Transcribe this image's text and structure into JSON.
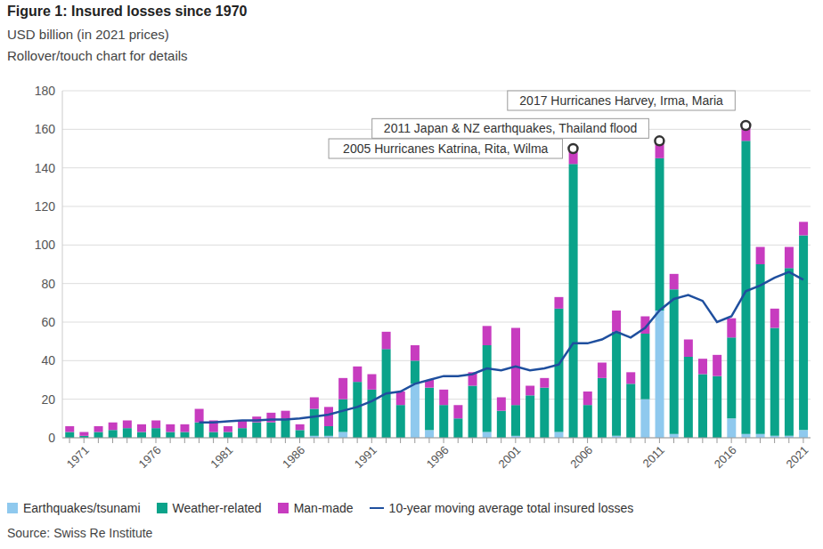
{
  "chart_data": {
    "type": "bar",
    "title": "Figure 1: Insured losses since 1970",
    "subtitle": [
      "USD billion (in 2021 prices)",
      "Rollover/touch chart for details"
    ],
    "source": "Source: Swiss Re Institute",
    "stacked": true,
    "grid": true,
    "legend": "bottom",
    "categories": [
      null,
      "1971",
      null,
      null,
      null,
      null,
      "1976",
      null,
      null,
      null,
      null,
      "1981",
      null,
      null,
      null,
      null,
      "1986",
      null,
      null,
      null,
      null,
      "1991",
      null,
      null,
      null,
      null,
      "1996",
      null,
      null,
      null,
      null,
      "2001",
      null,
      null,
      null,
      null,
      "2006",
      null,
      null,
      null,
      null,
      "2011",
      null,
      null,
      null,
      null,
      "2016",
      null,
      null,
      null,
      null,
      "2021"
    ],
    "series": [
      {
        "name": "Earthquakes/tsunami",
        "color": "#8fc9ee",
        "values": [
          0,
          0,
          0,
          0,
          0,
          0,
          0,
          0,
          0,
          0,
          0,
          0,
          0,
          0,
          0,
          0,
          0,
          1,
          1,
          3,
          0,
          0,
          0,
          0,
          28,
          4,
          0,
          0,
          0,
          3,
          0,
          1,
          0,
          0,
          3,
          0,
          0,
          0,
          1,
          0,
          20,
          66,
          2,
          0,
          0,
          0,
          10,
          2,
          2,
          1,
          1,
          4
        ]
      },
      {
        "name": "Weather-related",
        "color": "#0aa38a",
        "values": [
          3,
          1,
          3,
          4,
          5,
          3,
          5,
          3,
          3,
          8,
          3,
          3,
          5,
          8,
          8,
          10,
          4,
          14,
          5,
          17,
          29,
          25,
          46,
          17,
          12,
          22,
          17,
          10,
          27,
          45,
          14,
          16,
          22,
          26,
          64,
          142,
          17,
          31,
          54,
          28,
          34,
          79,
          75,
          42,
          33,
          32,
          42,
          152,
          88,
          56,
          87,
          101
        ]
      },
      {
        "name": "Man-made",
        "color": "#c73cbf",
        "values": [
          3,
          2,
          3,
          4,
          4,
          4,
          4,
          4,
          4,
          7,
          6,
          3,
          4,
          3,
          5,
          4,
          3,
          6,
          10,
          11,
          8,
          8,
          9,
          7,
          8,
          4,
          8,
          7,
          7,
          10,
          7,
          40,
          5,
          5,
          6,
          8,
          7,
          8,
          11,
          6,
          9,
          9,
          8,
          9,
          8,
          11,
          10,
          8,
          9,
          10,
          11,
          7
        ]
      },
      {
        "name": "10-year moving average total insured losses",
        "type": "line",
        "color": "#1f4f9e",
        "values": [
          null,
          null,
          null,
          null,
          null,
          null,
          null,
          null,
          null,
          8,
          8,
          8.5,
          9,
          9,
          9.5,
          9.5,
          10,
          11,
          12,
          14,
          16,
          19,
          23,
          24,
          28,
          30,
          32,
          32,
          33,
          36,
          35,
          37,
          35,
          36,
          38,
          49,
          49,
          51,
          55,
          52,
          57,
          66,
          72,
          74,
          71,
          60,
          63,
          76,
          79,
          83,
          86,
          82
        ]
      }
    ],
    "ylim": [
      0,
      180
    ],
    "yticks": [
      0,
      20,
      40,
      60,
      80,
      100,
      120,
      140,
      160,
      180
    ],
    "annotations": [
      {
        "text": "2005 Hurricanes Katrina, Rita, Wilma",
        "position": 35,
        "marker": "circle"
      },
      {
        "text": "2011 Japan & NZ earthquakes, Thailand flood",
        "position": 41,
        "marker": "circle"
      },
      {
        "text": "2017 Hurricanes Harvey, Irma, Maria",
        "position": 47,
        "marker": "circle"
      }
    ]
  }
}
